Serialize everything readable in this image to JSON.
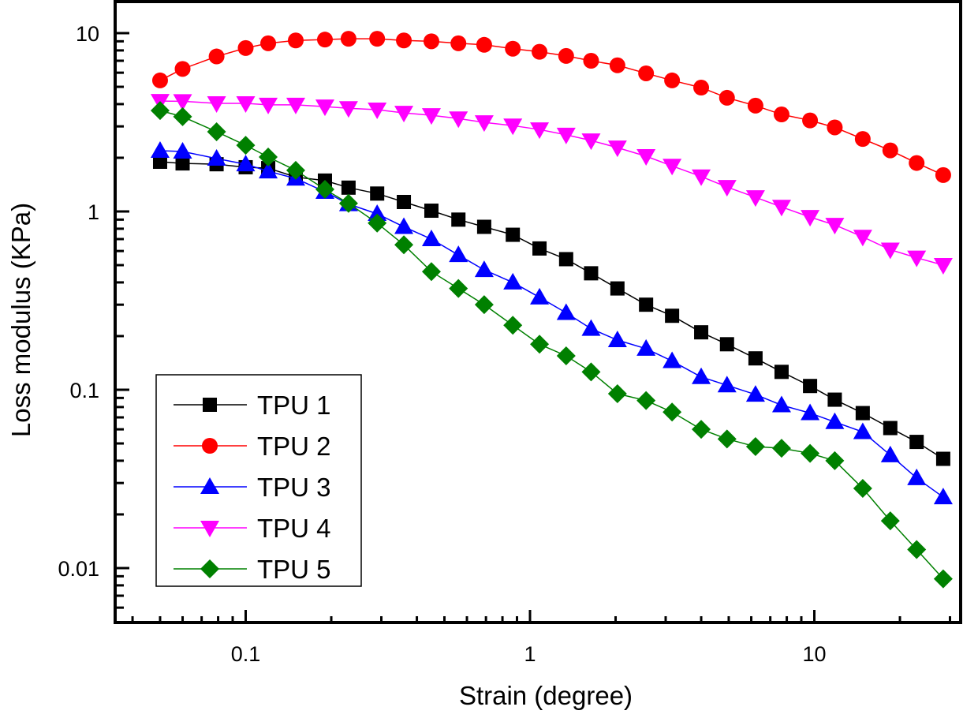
{
  "chart_data": {
    "type": "line",
    "title": "",
    "xlabel": "Strain (degree)",
    "ylabel": "Loss modulus (KPa)",
    "xscale": "log",
    "yscale": "log",
    "xlim": [
      0.036,
      30
    ],
    "ylim": [
      0.0053,
      11.5
    ],
    "xticks": [
      0.1,
      1,
      10
    ],
    "xtick_labels": [
      "0.1",
      "1",
      "10"
    ],
    "yticks": [
      0.01,
      0.1,
      1,
      10
    ],
    "ytick_labels": [
      "0.01",
      "0.1",
      "1",
      "10"
    ],
    "grid": false,
    "legend_position": "bottom-left",
    "x": [
      0.05,
      0.06,
      0.079,
      0.1,
      0.12,
      0.15,
      0.19,
      0.23,
      0.29,
      0.36,
      0.45,
      0.56,
      0.69,
      0.87,
      1.08,
      1.34,
      1.64,
      2.03,
      2.56,
      3.16,
      4.0,
      4.93,
      6.21,
      7.67,
      9.66,
      11.8,
      14.8,
      18.5,
      22.9,
      28.4
    ],
    "series": [
      {
        "name": "TPU 1",
        "color": "#000000",
        "marker": "square",
        "values": [
          1.9,
          1.86,
          1.84,
          1.77,
          1.75,
          1.56,
          1.49,
          1.36,
          1.26,
          1.13,
          1.01,
          0.9,
          0.82,
          0.74,
          0.62,
          0.54,
          0.45,
          0.37,
          0.3,
          0.26,
          0.21,
          0.18,
          0.15,
          0.126,
          0.105,
          0.088,
          0.074,
          0.061,
          0.051,
          0.041
        ]
      },
      {
        "name": "TPU 2",
        "color": "#ff0000",
        "marker": "circle",
        "values": [
          5.43,
          6.3,
          7.4,
          8.25,
          8.77,
          9.1,
          9.2,
          9.3,
          9.3,
          9.1,
          9.0,
          8.77,
          8.6,
          8.18,
          7.86,
          7.45,
          7.0,
          6.6,
          5.95,
          5.43,
          4.95,
          4.34,
          3.92,
          3.5,
          3.24,
          2.96,
          2.55,
          2.2,
          1.87,
          1.6
        ]
      },
      {
        "name": "TPU 3",
        "color": "#0000ff",
        "marker": "triangle-up",
        "values": [
          2.19,
          2.17,
          1.98,
          1.84,
          1.68,
          1.53,
          1.29,
          1.1,
          0.97,
          0.82,
          0.7,
          0.57,
          0.47,
          0.4,
          0.33,
          0.27,
          0.22,
          0.19,
          0.17,
          0.145,
          0.118,
          0.106,
          0.094,
          0.082,
          0.074,
          0.066,
          0.058,
          0.043,
          0.032,
          0.025
        ]
      },
      {
        "name": "TPU 4",
        "color": "#ff00ff",
        "marker": "triangle-down",
        "values": [
          4.16,
          4.15,
          4.04,
          4.04,
          3.96,
          3.96,
          3.87,
          3.79,
          3.72,
          3.57,
          3.46,
          3.32,
          3.16,
          3.03,
          2.88,
          2.69,
          2.5,
          2.28,
          2.04,
          1.8,
          1.57,
          1.37,
          1.2,
          1.06,
          0.93,
          0.84,
          0.72,
          0.61,
          0.55,
          0.5
        ]
      },
      {
        "name": "TPU 5",
        "color": "#008000",
        "marker": "diamond",
        "values": [
          3.68,
          3.4,
          2.8,
          2.35,
          2.02,
          1.7,
          1.33,
          1.11,
          0.86,
          0.65,
          0.46,
          0.37,
          0.3,
          0.23,
          0.18,
          0.155,
          0.126,
          0.095,
          0.087,
          0.075,
          0.06,
          0.053,
          0.048,
          0.047,
          0.044,
          0.04,
          0.028,
          0.0184,
          0.0127,
          0.0087
        ]
      }
    ]
  }
}
